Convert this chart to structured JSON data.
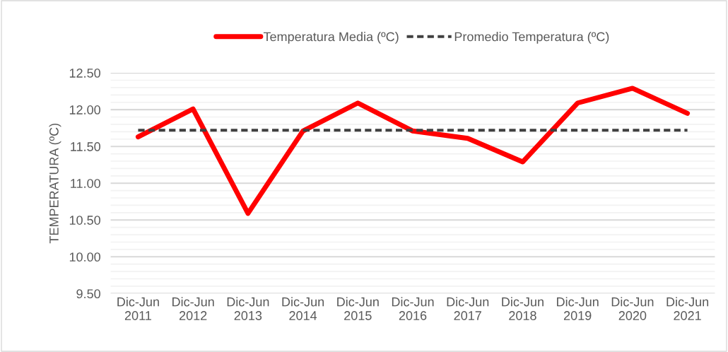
{
  "chart_data": {
    "type": "line",
    "ylabel": "TEMPERATURA (ºC)",
    "categories": [
      "Dic-Jun\n2011",
      "Dic-Jun\n2012",
      "Dic-Jun\n2013",
      "Dic-Jun\n2014",
      "Dic-Jun\n2015",
      "Dic-Jun\n2016",
      "Dic-Jun\n2017",
      "Dic-Jun\n2018",
      "Dic-Jun\n2019",
      "Dic-Jun\n2020",
      "Dic-Jun\n2021"
    ],
    "series": [
      {
        "name": "Temperatura Media (ºC)",
        "color": "#ff0000",
        "line_style": "solid",
        "values": [
          11.63,
          12.01,
          10.59,
          11.71,
          12.09,
          11.71,
          11.61,
          11.29,
          12.09,
          12.29,
          11.95
        ]
      },
      {
        "name": "Promedio Temperatura (ºC)",
        "color": "#404040",
        "line_style": "dashed",
        "values": [
          11.72,
          11.72,
          11.72,
          11.72,
          11.72,
          11.72,
          11.72,
          11.72,
          11.72,
          11.72,
          11.72
        ]
      }
    ],
    "ylim": [
      9.5,
      12.5
    ],
    "yticks": [
      {
        "value": 9.5,
        "label": "9.50"
      },
      {
        "value": 9.6,
        "label": null
      },
      {
        "value": 9.7,
        "label": null
      },
      {
        "value": 9.8,
        "label": null
      },
      {
        "value": 9.9,
        "label": null
      },
      {
        "value": 10.0,
        "label": "10.00"
      },
      {
        "value": 10.1,
        "label": null
      },
      {
        "value": 10.2,
        "label": null
      },
      {
        "value": 10.3,
        "label": null
      },
      {
        "value": 10.4,
        "label": null
      },
      {
        "value": 10.5,
        "label": "10.50"
      },
      {
        "value": 10.6,
        "label": null
      },
      {
        "value": 10.7,
        "label": null
      },
      {
        "value": 10.8,
        "label": null
      },
      {
        "value": 10.9,
        "label": null
      },
      {
        "value": 11.0,
        "label": "11.00"
      },
      {
        "value": 11.1,
        "label": null
      },
      {
        "value": 11.2,
        "label": null
      },
      {
        "value": 11.3,
        "label": null
      },
      {
        "value": 11.4,
        "label": null
      },
      {
        "value": 11.5,
        "label": "11.50"
      },
      {
        "value": 11.6,
        "label": null
      },
      {
        "value": 11.7,
        "label": null
      },
      {
        "value": 11.8,
        "label": null
      },
      {
        "value": 11.9,
        "label": null
      },
      {
        "value": 12.0,
        "label": "12.00"
      },
      {
        "value": 12.1,
        "label": null
      },
      {
        "value": 12.2,
        "label": null
      },
      {
        "value": 12.3,
        "label": null
      },
      {
        "value": 12.4,
        "label": null
      },
      {
        "value": 12.5,
        "label": "12.50"
      }
    ],
    "grid": "y",
    "legend": "top",
    "marker": "none"
  }
}
